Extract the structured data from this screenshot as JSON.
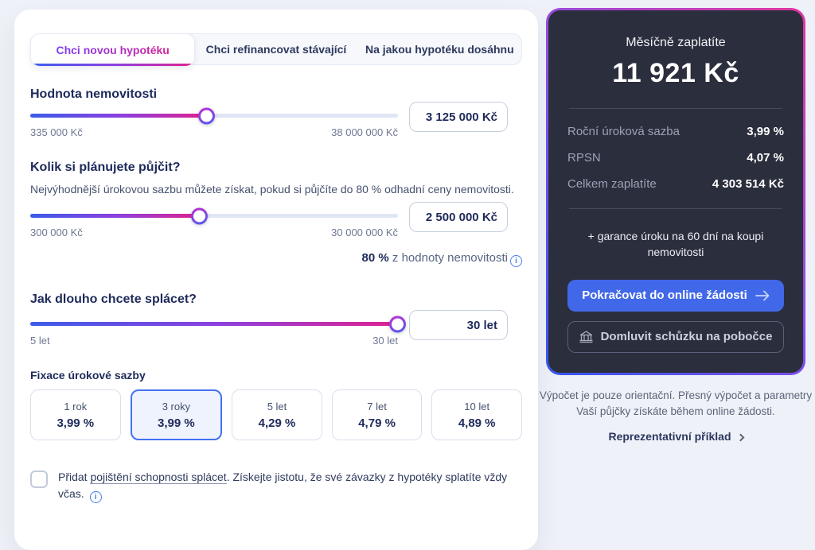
{
  "tabs": {
    "items": [
      {
        "label": "Chci novou hypotéku",
        "active": true
      },
      {
        "label": "Chci refinancovat stávající",
        "active": false
      },
      {
        "label": "Na jakou hypotéku dosáhnu",
        "active": false
      }
    ]
  },
  "property_value": {
    "heading": "Hodnota nemovitosti",
    "min": "335 000 Kč",
    "max": "38 000 000 Kč",
    "value": "3 125 000 Kč",
    "percent": 48
  },
  "loan_amount": {
    "heading": "Kolik si plánujete půjčit?",
    "subtitle": "Nejvýhodnější úrokovou sazbu můžete získat, pokud si půjčíte do 80 % odhadní ceny nemovitosti.",
    "min": "300 000 Kč",
    "max": "30 000 000 Kč",
    "value": "2 500 000 Kč",
    "percent": 46,
    "ltv_bold": "80 %",
    "ltv_rest": " z hodnoty nemovitosti"
  },
  "term": {
    "heading": "Jak dlouho chcete splácet?",
    "min": "5 let",
    "max": "30 let",
    "value": "30 let",
    "percent": 100
  },
  "fixation": {
    "label": "Fixace úrokové sazby",
    "options": [
      {
        "term": "1 rok",
        "rate": "3,99 %",
        "selected": false
      },
      {
        "term": "3 roky",
        "rate": "3,99 %",
        "selected": true
      },
      {
        "term": "5 let",
        "rate": "4,29 %",
        "selected": false
      },
      {
        "term": "7 let",
        "rate": "4,79 %",
        "selected": false
      },
      {
        "term": "10 let",
        "rate": "4,89 %",
        "selected": false
      }
    ]
  },
  "insurance": {
    "prefix": "Přidat ",
    "link": "pojištění schopnosti splácet",
    "suffix": ". Získejte jistotu, že své závazky z hypotéky splatíte vždy včas. ",
    "checked": false
  },
  "summary": {
    "monthly_label": "Měsíčně zaplatíte",
    "monthly_value": "11 921 Kč",
    "rows": [
      {
        "label": "Roční úroková sazba",
        "value": "3,99 %"
      },
      {
        "label": "RPSN",
        "value": "4,07 %"
      },
      {
        "label": "Celkem zaplatíte",
        "value": "4 303 514 Kč"
      }
    ],
    "guarantee": "+ garance úroku na 60 dní na koupi nemovitosti",
    "primary_button": "Pokračovat do online žádosti",
    "secondary_button": "Domluvit schůzku na pobočce"
  },
  "footer": {
    "disclaimer": "Výpočet je pouze orientační. Přesný výpočet a parametry Vaší půjčky získáte během online žádosti.",
    "link": "Reprezentativní příklad"
  },
  "colors": {
    "accent_blue": "#4168e8",
    "gradient_start": "#3b5ce8",
    "gradient_mid": "#8a41e0",
    "gradient_end": "#e0218f",
    "dark_card_bg": "#2b2e3c"
  }
}
